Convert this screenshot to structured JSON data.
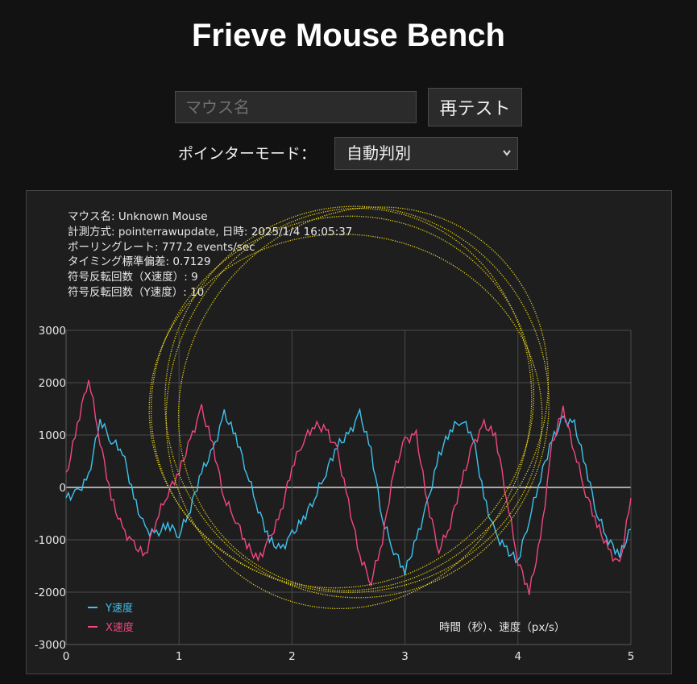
{
  "header": {
    "title": "Frieve Mouse Bench"
  },
  "controls": {
    "mouse_name_placeholder": "マウス名",
    "retest_label": "再テスト",
    "pointer_mode_label": "ポインターモード：",
    "pointer_mode_value": "自動判別",
    "chevron_icon": "chevron-down-icon"
  },
  "info": {
    "mouse_name": "マウス名: Unknown Mouse",
    "method": "計測方式: pointerrawupdate, 日時: 2025/1/4 16:05:37",
    "polling": "ポーリングレート: 777.2 events/sec",
    "timing_std": "タイミング標準偏差: 0.7129",
    "sign_flip_x": "符号反転回数（X速度）: 9",
    "sign_flip_y": "符号反転回数（Y速度）: 10"
  },
  "colors": {
    "y_speed": "#3ec3ef",
    "x_speed": "#f2477f",
    "trail": "#e8d21a",
    "grid": "#4a4a4a",
    "zero_line": "#ffffff"
  },
  "chart_data": {
    "type": "line",
    "title": "",
    "xlabel": "時間（秒）、速度（px/s）",
    "ylabel": "",
    "xlim": [
      0,
      5
    ],
    "ylim": [
      -3000,
      3000
    ],
    "x_ticks": [
      "0",
      "1",
      "2",
      "3",
      "4",
      "5"
    ],
    "y_ticks": [
      "3000",
      "2000",
      "1000",
      "0",
      "-1000",
      "-2000",
      "-3000"
    ],
    "grid": true,
    "legend_position": "bottom-left",
    "x": [
      0,
      0.1,
      0.2,
      0.3,
      0.4,
      0.5,
      0.6,
      0.7,
      0.8,
      0.9,
      1.0,
      1.1,
      1.2,
      1.3,
      1.4,
      1.5,
      1.6,
      1.7,
      1.8,
      1.9,
      2.0,
      2.1,
      2.2,
      2.3,
      2.4,
      2.5,
      2.6,
      2.7,
      2.8,
      2.9,
      3.0,
      3.1,
      3.2,
      3.3,
      3.4,
      3.5,
      3.6,
      3.7,
      3.8,
      3.9,
      4.0,
      4.1,
      4.2,
      4.3,
      4.4,
      4.5,
      4.6,
      4.7,
      4.8,
      4.9,
      5.0
    ],
    "series": [
      {
        "name": "Y速度",
        "values": [
          -200,
          -100,
          200,
          1300,
          900,
          700,
          -200,
          -800,
          -900,
          -700,
          -900,
          -400,
          300,
          700,
          1400,
          1000,
          300,
          -400,
          -1000,
          -1200,
          -900,
          -600,
          -200,
          300,
          800,
          1000,
          1400,
          700,
          -600,
          -1200,
          -1600,
          -1000,
          -300,
          600,
          1100,
          1300,
          1000,
          -200,
          -900,
          -1200,
          -1400,
          -600,
          200,
          900,
          1300,
          1200,
          400,
          -500,
          -1000,
          -1300,
          -800
        ]
      },
      {
        "name": "X速度",
        "values": [
          200,
          1200,
          2100,
          900,
          -200,
          -800,
          -1100,
          -1300,
          -600,
          -100,
          300,
          900,
          1500,
          800,
          -200,
          -600,
          -1100,
          -1400,
          -1000,
          -500,
          400,
          900,
          1200,
          1100,
          700,
          -300,
          -1300,
          -1800,
          -1000,
          300,
          900,
          1000,
          -300,
          -1200,
          -700,
          100,
          800,
          1200,
          1000,
          -200,
          -1400,
          -2000,
          -1000,
          800,
          1500,
          700,
          -100,
          -700,
          -1200,
          -1500,
          -200
        ]
      }
    ],
    "legend": [
      "Y速度",
      "X速度"
    ]
  }
}
